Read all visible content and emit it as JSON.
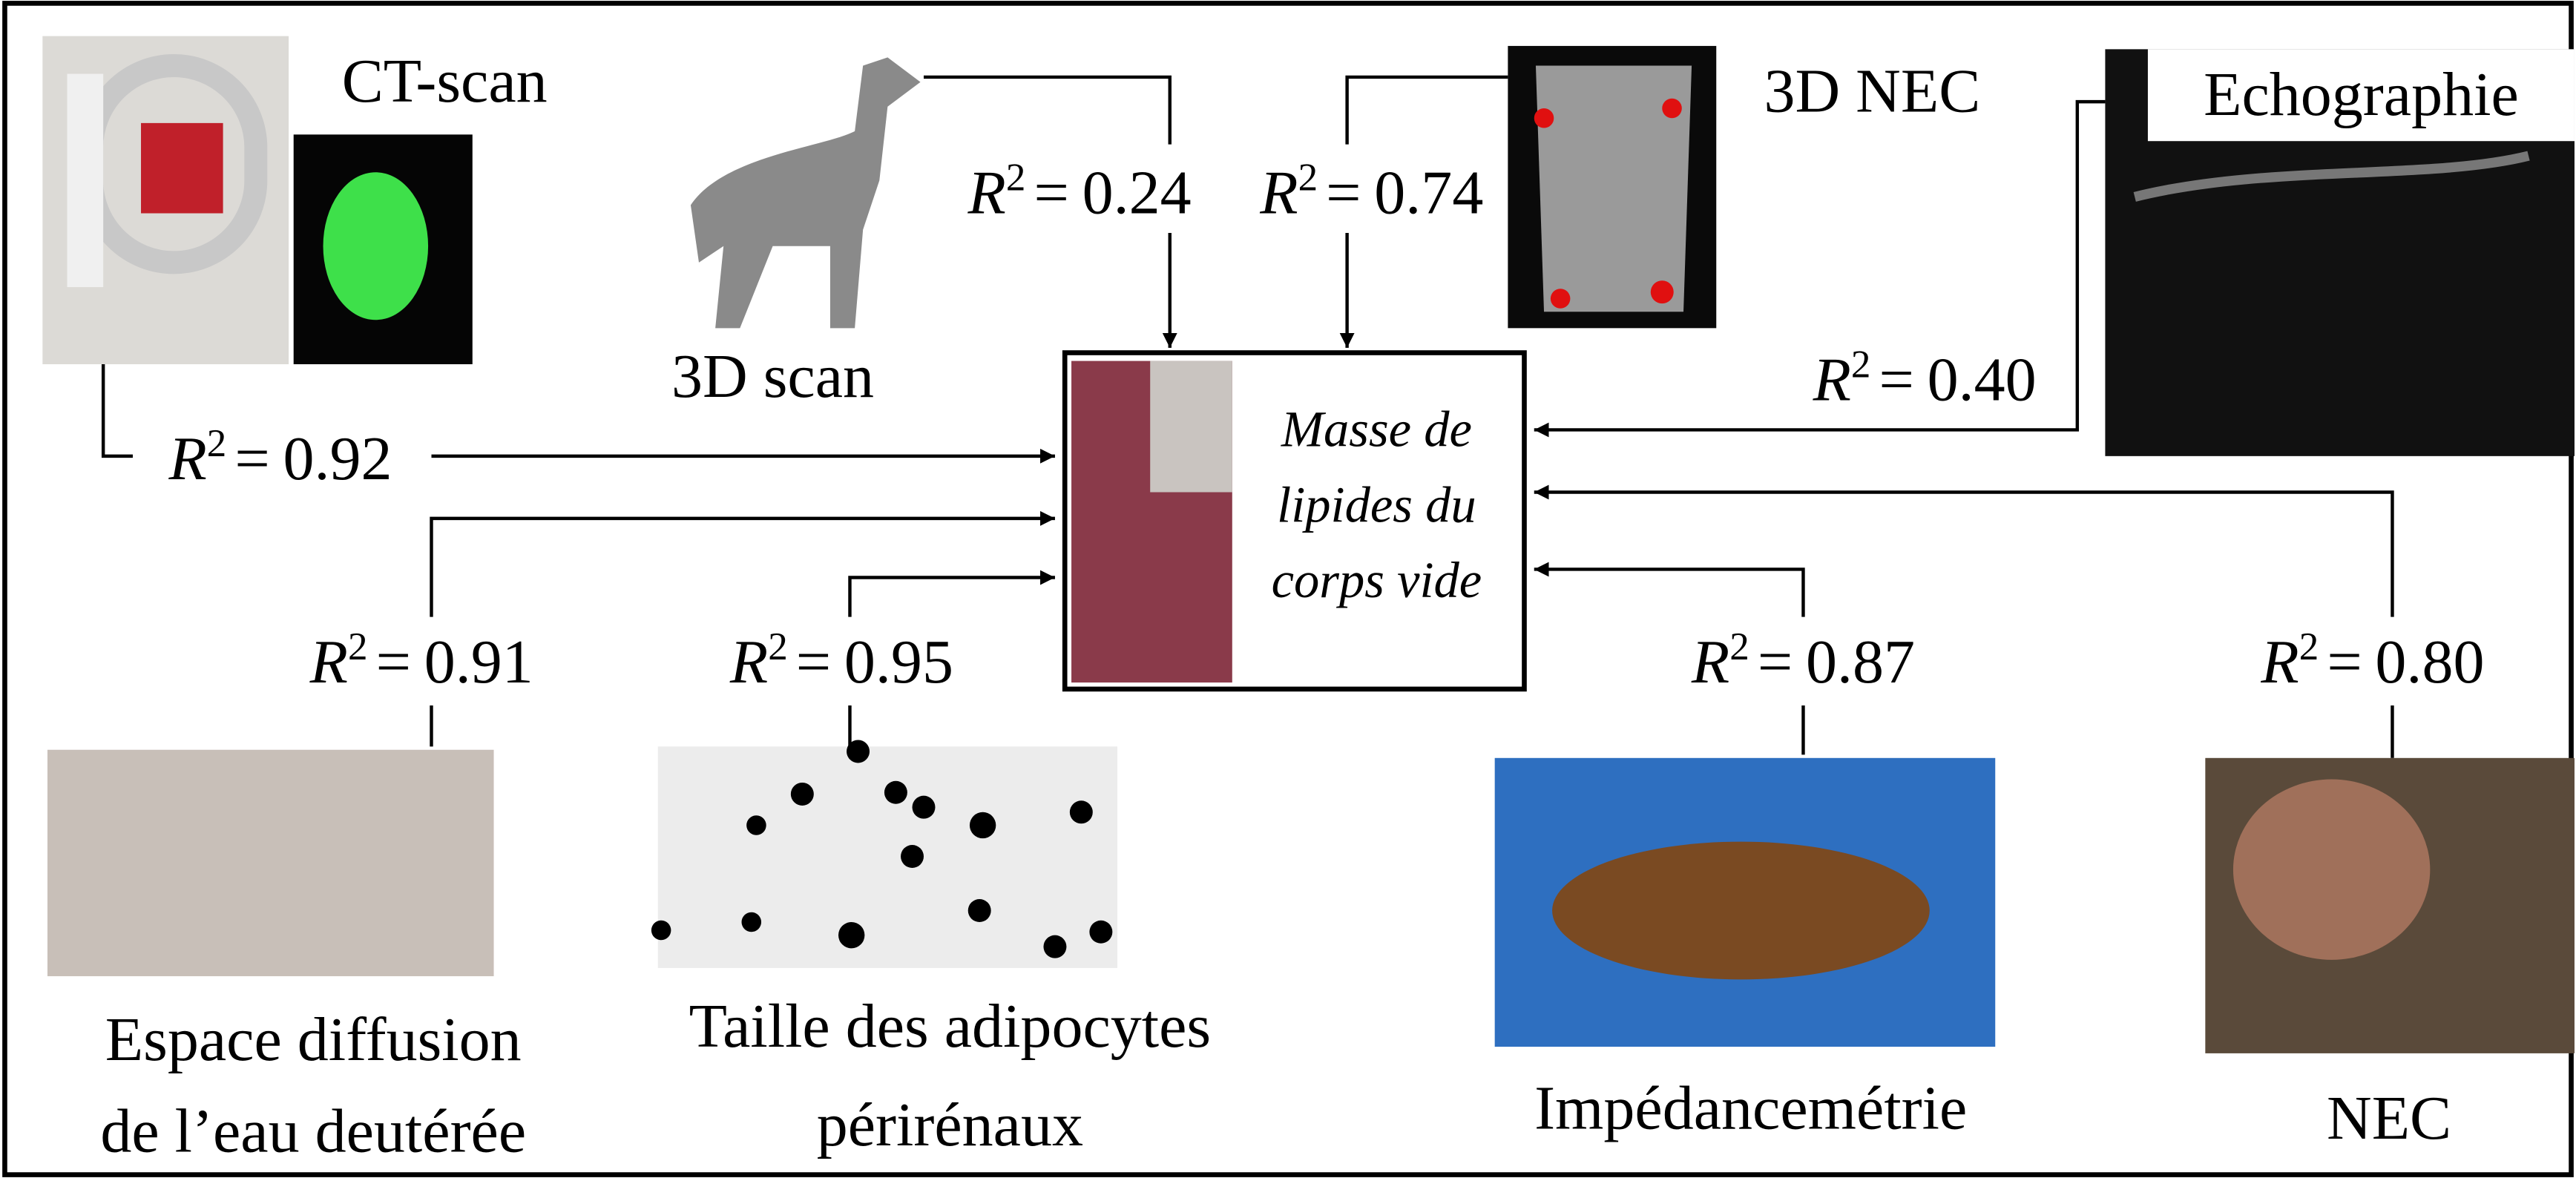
{
  "target": {
    "lines": [
      "Masse de",
      "lipides du",
      "corps vide"
    ]
  },
  "r2": {
    "symbol": "R",
    "exponent": "2",
    "relation": "="
  },
  "methods": [
    {
      "label": [
        "CT-scan"
      ],
      "r2": "0.92"
    },
    {
      "label": [
        "3D scan"
      ],
      "r2": "0.24"
    },
    {
      "label": [
        "3D NEC"
      ],
      "r2": "0.74"
    },
    {
      "label": [
        "Echographie"
      ],
      "r2": "0.40"
    },
    {
      "label": [
        "Espace diffusion",
        "de l’eau deutérée"
      ],
      "r2": "0.91"
    },
    {
      "label": [
        "Taille des adipocytes",
        "périrénaux"
      ],
      "r2": "0.95"
    },
    {
      "label": [
        "Impédancemétrie"
      ],
      "r2": "0.87"
    },
    {
      "label": [
        "NEC"
      ],
      "r2": "0.80"
    }
  ]
}
